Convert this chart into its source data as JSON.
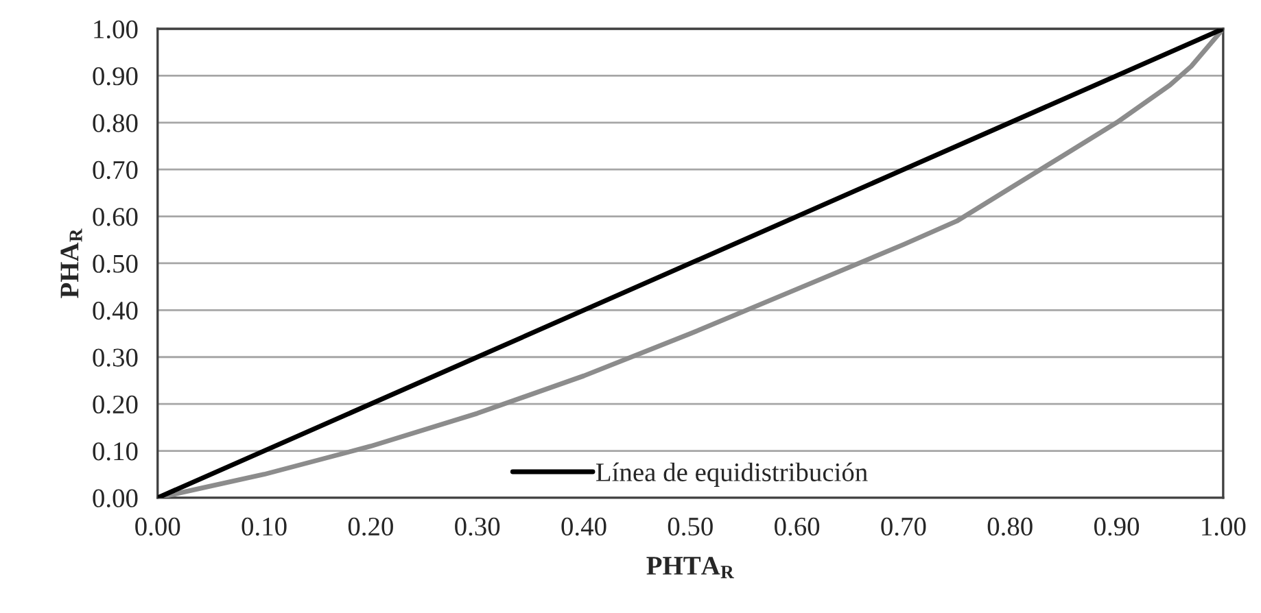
{
  "chart_data": {
    "type": "line",
    "xlabel": "PHTA$_{R}$",
    "ylabel": "PHA$_{R}$",
    "xlim": [
      0,
      1
    ],
    "ylim": [
      0,
      1
    ],
    "xticks": [
      {
        "value": 0,
        "label": "0.00"
      },
      {
        "value": 0.1,
        "label": "0.10"
      },
      {
        "value": 0.2,
        "label": "0.20"
      },
      {
        "value": 0.3,
        "label": "0.30"
      },
      {
        "value": 0.4,
        "label": "0.40"
      },
      {
        "value": 0.5,
        "label": "0.50"
      },
      {
        "value": 0.6,
        "label": "0.60"
      },
      {
        "value": 0.7,
        "label": "0.70"
      },
      {
        "value": 0.8,
        "label": "0.80"
      },
      {
        "value": 0.9,
        "label": "0.90"
      },
      {
        "value": 1,
        "label": "1.00"
      }
    ],
    "yticks": [
      {
        "value": 0,
        "label": "0.00"
      },
      {
        "value": 0.1,
        "label": "0.10"
      },
      {
        "value": 0.2,
        "label": "0.20"
      },
      {
        "value": 0.3,
        "label": "0.30"
      },
      {
        "value": 0.4,
        "label": "0.40"
      },
      {
        "value": 0.5,
        "label": "0.50"
      },
      {
        "value": 0.6,
        "label": "0.60"
      },
      {
        "value": 0.7,
        "label": "0.70"
      },
      {
        "value": 0.8,
        "label": "0.80"
      },
      {
        "value": 0.9,
        "label": "0.90"
      },
      {
        "value": 1,
        "label": "1.00"
      }
    ],
    "grid": "y",
    "legend": "bottom",
    "marker": "none",
    "line_style": "solid",
    "series": [
      {
        "color": "#8c8c8c",
        "x": [
          0,
          0.1,
          0.2,
          0.3,
          0.4,
          0.5,
          0.6,
          0.7,
          0.75,
          0.8,
          0.85,
          0.9,
          0.95,
          0.97,
          1
        ],
        "values": [
          0,
          0.05,
          0.11,
          0.18,
          0.26,
          0.35,
          0.445,
          0.54,
          0.59,
          0.66,
          0.73,
          0.8,
          0.88,
          0.92,
          1
        ]
      },
      {
        "name": "Línea de equidistribución",
        "color": "#000000",
        "x": [
          0,
          1
        ],
        "values": [
          0,
          1
        ]
      }
    ]
  }
}
